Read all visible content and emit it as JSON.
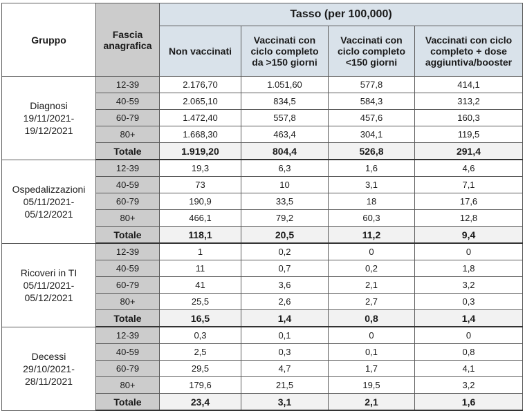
{
  "header": {
    "group": "Gruppo",
    "age": "Fascia anagrafica",
    "rate": "Tasso (per 100,000)",
    "cols": [
      "Non vaccinati",
      "Vaccinati con ciclo completo da >150 giorni",
      "Vaccinati con ciclo completo <150 giorni",
      "Vaccinati con ciclo completo + dose aggiuntiva/booster"
    ]
  },
  "groups": [
    {
      "label_lines": [
        "Diagnosi",
        "19/11/2021-",
        "19/12/2021"
      ],
      "rows": [
        {
          "age": "12-39",
          "v": [
            "2.176,70",
            "1.051,60",
            "577,8",
            "414,1"
          ]
        },
        {
          "age": "40-59",
          "v": [
            "2.065,10",
            "834,5",
            "584,3",
            "313,2"
          ]
        },
        {
          "age": "60-79",
          "v": [
            "1.472,40",
            "557,8",
            "457,6",
            "160,3"
          ]
        },
        {
          "age": "80+",
          "v": [
            "1.668,30",
            "463,4",
            "304,1",
            "119,5"
          ]
        }
      ],
      "total": {
        "label": "Totale",
        "v": [
          "1.919,20",
          "804,4",
          "526,8",
          "291,4"
        ]
      }
    },
    {
      "label_lines": [
        "Ospedalizzazioni",
        "05/11/2021-",
        "05/12/2021"
      ],
      "rows": [
        {
          "age": "12-39",
          "v": [
            "19,3",
            "6,3",
            "1,6",
            "4,6"
          ]
        },
        {
          "age": "40-59",
          "v": [
            "73",
            "10",
            "3,1",
            "7,1"
          ]
        },
        {
          "age": "60-79",
          "v": [
            "190,9",
            "33,5",
            "18",
            "17,6"
          ]
        },
        {
          "age": "80+",
          "v": [
            "466,1",
            "79,2",
            "60,3",
            "12,8"
          ]
        }
      ],
      "total": {
        "label": "Totale",
        "v": [
          "118,1",
          "20,5",
          "11,2",
          "9,4"
        ]
      }
    },
    {
      "label_lines": [
        "Ricoveri in TI",
        "05/11/2021-",
        "05/12/2021"
      ],
      "rows": [
        {
          "age": "12-39",
          "v": [
            "1",
            "0,2",
            "0",
            "0"
          ]
        },
        {
          "age": "40-59",
          "v": [
            "11",
            "0,7",
            "0,2",
            "1,8"
          ]
        },
        {
          "age": "60-79",
          "v": [
            "41",
            "3,6",
            "2,1",
            "3,2"
          ]
        },
        {
          "age": "80+",
          "v": [
            "25,5",
            "2,6",
            "2,7",
            "0,3"
          ]
        }
      ],
      "total": {
        "label": "Totale",
        "v": [
          "16,5",
          "1,4",
          "0,8",
          "1,4"
        ]
      }
    },
    {
      "label_lines": [
        "Decessi",
        "29/10/2021-",
        "28/11/2021"
      ],
      "rows": [
        {
          "age": "12-39",
          "v": [
            "0,3",
            "0,1",
            "0",
            "0"
          ]
        },
        {
          "age": "40-59",
          "v": [
            "2,5",
            "0,3",
            "0,1",
            "0,8"
          ]
        },
        {
          "age": "60-79",
          "v": [
            "29,5",
            "4,7",
            "1,7",
            "4,1"
          ]
        },
        {
          "age": "80+",
          "v": [
            "179,6",
            "21,5",
            "19,5",
            "3,2"
          ]
        }
      ],
      "total": {
        "label": "Totale",
        "v": [
          "23,4",
          "3,1",
          "2,1",
          "1,6"
        ]
      }
    }
  ]
}
